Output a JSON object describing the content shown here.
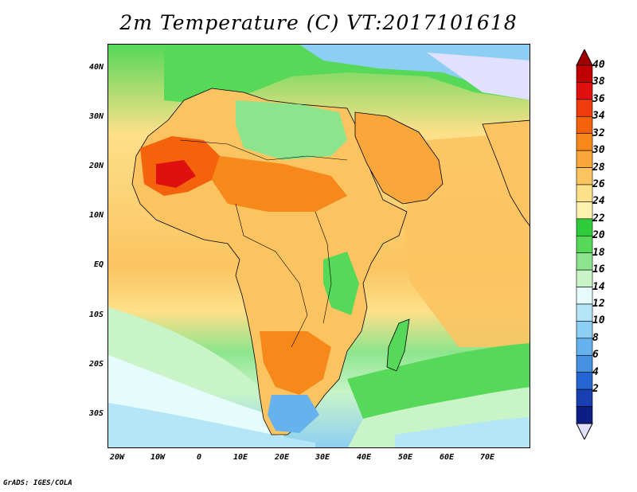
{
  "title": "2m Temperature (C) VT:2017101618",
  "credit": "GrADS: IGES/COLA",
  "y_axis_labels": [
    "40N",
    "30N",
    "20N",
    "10N",
    "EQ",
    "10S",
    "20S",
    "30S"
  ],
  "x_axis_labels": [
    "20W",
    "10W",
    "0",
    "10E",
    "20E",
    "30E",
    "40E",
    "50E",
    "60E",
    "70E"
  ],
  "colorbar": {
    "labels": [
      "40",
      "38",
      "36",
      "34",
      "32",
      "30",
      "28",
      "26",
      "24",
      "22",
      "20",
      "18",
      "16",
      "14",
      "12",
      "10",
      "8",
      "6",
      "4",
      "2"
    ],
    "colors": [
      "#a00000",
      "#c00000",
      "#e01010",
      "#f03c0a",
      "#f4620c",
      "#f7881a",
      "#f9a73a",
      "#fbc460",
      "#fde08a",
      "#fff2b0",
      "#2ecc3a",
      "#56d858",
      "#8ce58c",
      "#c8f4c8",
      "#e6fbfc",
      "#b4e6f8",
      "#8ccef4",
      "#66b2ee",
      "#4690e2",
      "#2666d2",
      "#1840b0",
      "#0c1e86"
    ],
    "over_color": "#a00000",
    "under_color": "#e2e0ff"
  },
  "map": {
    "projection": "lat-lon",
    "lon_range": [
      -23,
      80
    ],
    "lat_range": [
      -38,
      46
    ],
    "variable": "2m Temperature (C)",
    "valid_time": "2017101618"
  }
}
